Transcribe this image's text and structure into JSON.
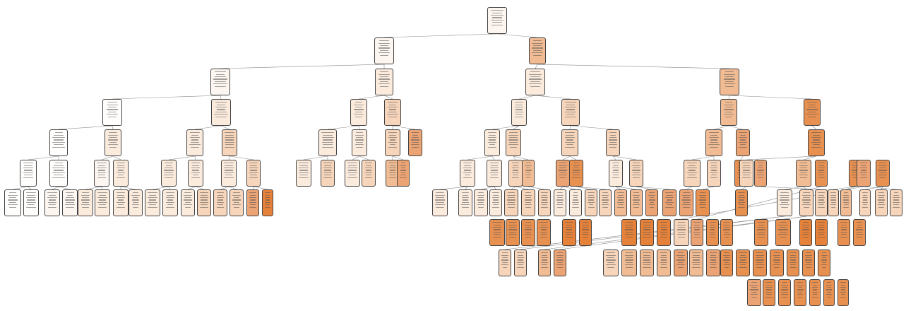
{
  "figure": {
    "background": "#ffffff",
    "edge_color": "#8a8a8a",
    "border_color": "#444444"
  },
  "fill_colors": {
    "w0": "#fffefd",
    "w1": "#fdf6f0",
    "w2": "#fbebdd",
    "w3": "#f6d5bb",
    "w4": "#f1bc93",
    "w5": "#eca373",
    "w6": "#e89050",
    "w7": "#e58139"
  },
  "nodes": [
    {
      "id": "n0",
      "shade": "w1"
    },
    {
      "id": "n1",
      "shade": "w1"
    },
    {
      "id": "n2",
      "shade": "w4"
    },
    {
      "id": "n3",
      "shade": "w1"
    },
    {
      "id": "n4",
      "shade": "w2"
    },
    {
      "id": "n5",
      "shade": "w2"
    },
    {
      "id": "n6",
      "shade": "w4"
    },
    {
      "id": "n7",
      "shade": "w0"
    },
    {
      "id": "n8",
      "shade": "w2"
    },
    {
      "id": "n9",
      "shade": "w2"
    },
    {
      "id": "n10",
      "shade": "w3"
    },
    {
      "id": "n11",
      "shade": "w2"
    },
    {
      "id": "n12",
      "shade": "w3"
    },
    {
      "id": "n13",
      "shade": "w4"
    },
    {
      "id": "n14",
      "shade": "w6"
    },
    {
      "id": "n15",
      "shade": "w0"
    },
    {
      "id": "n16",
      "shade": "w2"
    },
    {
      "id": "n17",
      "shade": "w2"
    },
    {
      "id": "n18",
      "shade": "w3"
    },
    {
      "id": "n19",
      "shade": "w2"
    },
    {
      "id": "n20",
      "shade": "w2"
    },
    {
      "id": "n21",
      "shade": "w3"
    },
    {
      "id": "n22",
      "shade": "w5"
    },
    {
      "id": "n23",
      "shade": "w2"
    },
    {
      "id": "n24",
      "shade": "w3"
    },
    {
      "id": "n25",
      "shade": "w3"
    },
    {
      "id": "n26",
      "shade": "w3"
    },
    {
      "id": "n27",
      "shade": "w4"
    },
    {
      "id": "n28",
      "shade": "w5"
    },
    {
      "id": "n29",
      "shade": "w6"
    },
    {
      "id": "n30",
      "shade": "w0"
    },
    {
      "id": "n31",
      "shade": "w0"
    },
    {
      "id": "n32",
      "shade": "w1"
    },
    {
      "id": "n33",
      "shade": "w2"
    },
    {
      "id": "n34",
      "shade": "w2"
    },
    {
      "id": "n35",
      "shade": "w2"
    },
    {
      "id": "n36",
      "shade": "w2"
    },
    {
      "id": "n37",
      "shade": "w3"
    },
    {
      "id": "n38",
      "shade": "w2"
    },
    {
      "id": "n39",
      "shade": "w3"
    },
    {
      "id": "n40",
      "shade": "w2"
    },
    {
      "id": "n41",
      "shade": "w3"
    },
    {
      "id": "n42",
      "shade": "w4"
    },
    {
      "id": "n43",
      "shade": "w5"
    },
    {
      "id": "n44",
      "shade": "w2"
    },
    {
      "id": "n45",
      "shade": "w2"
    },
    {
      "id": "n46",
      "shade": "w3"
    },
    {
      "id": "n47",
      "shade": "w4"
    },
    {
      "id": "n48",
      "shade": "w5"
    },
    {
      "id": "n49",
      "shade": "w6"
    },
    {
      "id": "n50",
      "shade": "w2"
    },
    {
      "id": "n51",
      "shade": "w3"
    },
    {
      "id": "n52",
      "shade": "w3"
    },
    {
      "id": "n53",
      "shade": "w3"
    },
    {
      "id": "n54",
      "shade": "w6"
    },
    {
      "id": "n55",
      "shade": "w3"
    },
    {
      "id": "n56",
      "shade": "w4"
    },
    {
      "id": "n57",
      "shade": "w5"
    },
    {
      "id": "n58",
      "shade": "w6"
    },
    {
      "id": "n59",
      "shade": "w6"
    },
    {
      "id": "n60",
      "shade": "w5"
    },
    {
      "id": "n61",
      "shade": "w6"
    },
    {
      "id": "n62",
      "shade": "w0"
    },
    {
      "id": "n63",
      "shade": "w0"
    },
    {
      "id": "n64",
      "shade": "w1"
    },
    {
      "id": "n65",
      "shade": "w1"
    },
    {
      "id": "n66",
      "shade": "w2"
    },
    {
      "id": "n67",
      "shade": "w2"
    },
    {
      "id": "n68",
      "shade": "w2"
    },
    {
      "id": "n69",
      "shade": "w2"
    },
    {
      "id": "n70",
      "shade": "w2"
    },
    {
      "id": "n71",
      "shade": "w2"
    },
    {
      "id": "n72",
      "shade": "w2"
    },
    {
      "id": "n73",
      "shade": "w3"
    },
    {
      "id": "n74",
      "shade": "w3"
    },
    {
      "id": "n75",
      "shade": "w3"
    },
    {
      "id": "n76",
      "shade": "w5"
    },
    {
      "id": "n77",
      "shade": "w7"
    },
    {
      "id": "n78",
      "shade": "w2"
    },
    {
      "id": "n79",
      "shade": "w2"
    },
    {
      "id": "n80",
      "shade": "w2"
    },
    {
      "id": "n81",
      "shade": "w2"
    },
    {
      "id": "n82",
      "shade": "w3"
    },
    {
      "id": "n83",
      "shade": "w3"
    },
    {
      "id": "n84",
      "shade": "w3"
    },
    {
      "id": "n85",
      "shade": "w2"
    },
    {
      "id": "n86",
      "shade": "w2"
    },
    {
      "id": "n87",
      "shade": "w3"
    },
    {
      "id": "n88",
      "shade": "w3"
    },
    {
      "id": "n89",
      "shade": "w4"
    },
    {
      "id": "n90",
      "shade": "w4"
    },
    {
      "id": "n91",
      "shade": "w5"
    },
    {
      "id": "n92",
      "shade": "w5"
    },
    {
      "id": "n93",
      "shade": "w5"
    },
    {
      "id": "n94",
      "shade": "w6"
    },
    {
      "id": "n95",
      "shade": "w6"
    },
    {
      "id": "n96",
      "shade": "w2"
    },
    {
      "id": "n97",
      "shade": "w3"
    },
    {
      "id": "n98",
      "shade": "w3"
    },
    {
      "id": "n99",
      "shade": "w3"
    },
    {
      "id": "n100",
      "shade": "w4"
    },
    {
      "id": "n101",
      "shade": "w3"
    },
    {
      "id": "n102",
      "shade": "w3"
    },
    {
      "id": "n103",
      "shade": "w3"
    },
    {
      "id": "n104",
      "shade": "w3"
    },
    {
      "id": "n105",
      "shade": "w5"
    },
    {
      "id": "n106",
      "shade": "w6"
    },
    {
      "id": "n107",
      "shade": "w6"
    },
    {
      "id": "n108",
      "shade": "w6"
    },
    {
      "id": "n109",
      "shade": "w6"
    },
    {
      "id": "n110",
      "shade": "w7"
    },
    {
      "id": "n111",
      "shade": "w7"
    },
    {
      "id": "n112",
      "shade": "w6"
    },
    {
      "id": "n113",
      "shade": "w6"
    },
    {
      "id": "n114",
      "shade": "w6"
    },
    {
      "id": "n115",
      "shade": "w6"
    },
    {
      "id": "n116",
      "shade": "w6"
    },
    {
      "id": "n117",
      "shade": "w6"
    },
    {
      "id": "n118",
      "shade": "w7"
    },
    {
      "id": "n119",
      "shade": "w7"
    },
    {
      "id": "n120",
      "shade": "w7"
    },
    {
      "id": "n121",
      "shade": "w7"
    },
    {
      "id": "n122",
      "shade": "w7"
    },
    {
      "id": "n123",
      "shade": "w3"
    },
    {
      "id": "n124",
      "shade": "w3"
    },
    {
      "id": "n125",
      "shade": "w4"
    },
    {
      "id": "n126",
      "shade": "w5"
    },
    {
      "id": "n127",
      "shade": "w3"
    },
    {
      "id": "n128",
      "shade": "w4"
    },
    {
      "id": "n129",
      "shade": "w4"
    },
    {
      "id": "n130",
      "shade": "w4"
    },
    {
      "id": "n131",
      "shade": "w5"
    },
    {
      "id": "n132",
      "shade": "w4"
    },
    {
      "id": "n133",
      "shade": "w5"
    },
    {
      "id": "n134",
      "shade": "w6"
    },
    {
      "id": "n135",
      "shade": "w6"
    },
    {
      "id": "n136",
      "shade": "w6"
    },
    {
      "id": "n137",
      "shade": "w6"
    },
    {
      "id": "n138",
      "shade": "w6"
    },
    {
      "id": "n139",
      "shade": "w6"
    },
    {
      "id": "n140",
      "shade": "w6"
    },
    {
      "id": "n141",
      "shade": "w5"
    },
    {
      "id": "n142",
      "shade": "w6"
    },
    {
      "id": "n143",
      "shade": "w6"
    },
    {
      "id": "n144",
      "shade": "w6"
    },
    {
      "id": "n145",
      "shade": "w6"
    },
    {
      "id": "n146",
      "shade": "w6"
    },
    {
      "id": "n147",
      "shade": "w6"
    }
  ],
  "edges": [
    [
      "n0",
      "n1"
    ],
    [
      "n0",
      "n2"
    ],
    [
      "n1",
      "n3"
    ],
    [
      "n1",
      "n4"
    ],
    [
      "n2",
      "n5"
    ],
    [
      "n2",
      "n6"
    ],
    [
      "n3",
      "n7"
    ],
    [
      "n3",
      "n8"
    ],
    [
      "n4",
      "n9"
    ],
    [
      "n4",
      "n10"
    ],
    [
      "n5",
      "n11"
    ],
    [
      "n5",
      "n12"
    ],
    [
      "n6",
      "n13"
    ],
    [
      "n6",
      "n14"
    ],
    [
      "n7",
      "n15"
    ],
    [
      "n7",
      "n16"
    ],
    [
      "n8",
      "n17"
    ],
    [
      "n8",
      "n18"
    ],
    [
      "n9",
      "n19"
    ],
    [
      "n9",
      "n20"
    ],
    [
      "n10",
      "n21"
    ],
    [
      "n10",
      "n22"
    ],
    [
      "n11",
      "n23"
    ],
    [
      "n11",
      "n24"
    ],
    [
      "n12",
      "n25"
    ],
    [
      "n12",
      "n26"
    ],
    [
      "n13",
      "n27"
    ],
    [
      "n13",
      "n28"
    ],
    [
      "n14",
      "n29"
    ],
    [
      "n15",
      "n30"
    ],
    [
      "n15",
      "n31"
    ],
    [
      "n16",
      "n32"
    ],
    [
      "n16",
      "n33"
    ],
    [
      "n17",
      "n34"
    ],
    [
      "n17",
      "n35"
    ],
    [
      "n18",
      "n36"
    ],
    [
      "n18",
      "n37"
    ],
    [
      "n19",
      "n38"
    ],
    [
      "n19",
      "n39"
    ],
    [
      "n20",
      "n40"
    ],
    [
      "n20",
      "n41"
    ],
    [
      "n21",
      "n42"
    ],
    [
      "n21",
      "n43"
    ],
    [
      "n23",
      "n44"
    ],
    [
      "n23",
      "n45"
    ],
    [
      "n24",
      "n46"
    ],
    [
      "n24",
      "n47"
    ],
    [
      "n25",
      "n48"
    ],
    [
      "n25",
      "n49"
    ],
    [
      "n26",
      "n50"
    ],
    [
      "n26",
      "n51"
    ],
    [
      "n27",
      "n52"
    ],
    [
      "n27",
      "n53"
    ],
    [
      "n28",
      "n54"
    ],
    [
      "n29",
      "n55"
    ],
    [
      "n29",
      "n56"
    ],
    [
      "n30",
      "n62"
    ],
    [
      "n30",
      "n63"
    ],
    [
      "n31",
      "n64"
    ],
    [
      "n31",
      "n65"
    ],
    [
      "n32",
      "n66"
    ],
    [
      "n32",
      "n67"
    ],
    [
      "n33",
      "n68"
    ],
    [
      "n33",
      "n69"
    ],
    [
      "n34",
      "n70"
    ],
    [
      "n34",
      "n71"
    ],
    [
      "n35",
      "n72"
    ],
    [
      "n35",
      "n73"
    ],
    [
      "n36",
      "n74"
    ],
    [
      "n36",
      "n75"
    ],
    [
      "n37",
      "n76"
    ],
    [
      "n37",
      "n77"
    ],
    [
      "n44",
      "n78"
    ],
    [
      "n44",
      "n79"
    ],
    [
      "n45",
      "n80"
    ],
    [
      "n45",
      "n81"
    ],
    [
      "n46",
      "n82"
    ],
    [
      "n46",
      "n83"
    ],
    [
      "n47",
      "n84"
    ],
    [
      "n48",
      "n85"
    ],
    [
      "n48",
      "n86"
    ],
    [
      "n49",
      "n87"
    ],
    [
      "n49",
      "n88"
    ],
    [
      "n50",
      "n89"
    ],
    [
      "n50",
      "n90"
    ],
    [
      "n51",
      "n91"
    ],
    [
      "n51",
      "n92"
    ],
    [
      "n52",
      "n93"
    ],
    [
      "n53",
      "n94"
    ],
    [
      "n55",
      "n95"
    ],
    [
      "n56",
      "n96"
    ],
    [
      "n56",
      "n97"
    ],
    [
      "n57",
      "n98"
    ],
    [
      "n58",
      "n99"
    ],
    [
      "n58",
      "n100"
    ],
    [
      "n59",
      "n101"
    ],
    [
      "n59",
      "n102"
    ],
    [
      "n60",
      "n103"
    ],
    [
      "n60",
      "n104"
    ],
    [
      "n61",
      "n105"
    ],
    [
      "n96",
      "n123"
    ],
    [
      "n96",
      "n124"
    ],
    [
      "n97",
      "n125"
    ],
    [
      "n97",
      "n126"
    ]
  ]
}
